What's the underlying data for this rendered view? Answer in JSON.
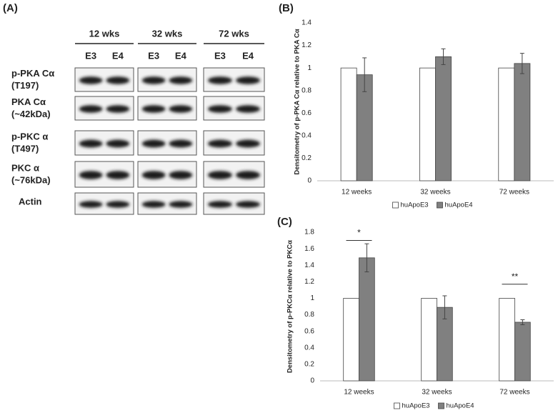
{
  "blot": {
    "panel": "(A)",
    "groups": [
      {
        "label": "12 wks",
        "lanes": [
          "E3",
          "E4"
        ]
      },
      {
        "label": "32 wks",
        "lanes": [
          "E3",
          "E4"
        ]
      },
      {
        "label": "72 wks",
        "lanes": [
          "E3",
          "E4"
        ]
      }
    ],
    "rows": [
      {
        "label": "p-PKA Cα",
        "sub": "(T197)"
      },
      {
        "label": "PKA Cα",
        "sub": "(~42kDa)"
      },
      {
        "label": "p-PKC α",
        "sub": "(T497)"
      },
      {
        "label": "PKC α",
        "sub": "(~76kDa)"
      },
      {
        "label": "Actin"
      }
    ]
  },
  "chart_data": [
    {
      "type": "bar",
      "panel": "(B)",
      "ylabel": "Densitometry of p-PKA Cα relative to PKA Cα",
      "categories": [
        "12 weeks",
        "32 weeks",
        "72 weeks"
      ],
      "series": [
        {
          "name": "huApoE3",
          "color": "#ffffff",
          "values": [
            1,
            1,
            1
          ]
        },
        {
          "name": "huApoE4",
          "color": "#808080",
          "values": [
            0.94,
            1.1,
            1.04
          ],
          "errors": [
            0.15,
            0.07,
            0.09
          ]
        }
      ],
      "ylim": [
        0,
        1.4
      ],
      "yticks": [
        0,
        0.2,
        0.4,
        0.6,
        0.8,
        1,
        1.2,
        1.4
      ],
      "grid": false
    },
    {
      "type": "bar",
      "panel": "(C)",
      "ylabel": "Densitometry of p-PKCα relative to PKCα",
      "categories": [
        "12 weeks",
        "32 weeks",
        "72 weeks"
      ],
      "series": [
        {
          "name": "huApoE3",
          "color": "#ffffff",
          "values": [
            1,
            1,
            1
          ]
        },
        {
          "name": "huApoE4",
          "color": "#808080",
          "values": [
            1.49,
            0.89,
            0.71
          ],
          "errors": [
            0.17,
            0.14,
            0.03
          ]
        }
      ],
      "ylim": [
        0,
        1.8
      ],
      "yticks": [
        0,
        0.2,
        0.4,
        0.6,
        0.8,
        1,
        1.2,
        1.4,
        1.6,
        1.8
      ],
      "grid": false,
      "annotations": [
        "*",
        "**"
      ]
    }
  ]
}
